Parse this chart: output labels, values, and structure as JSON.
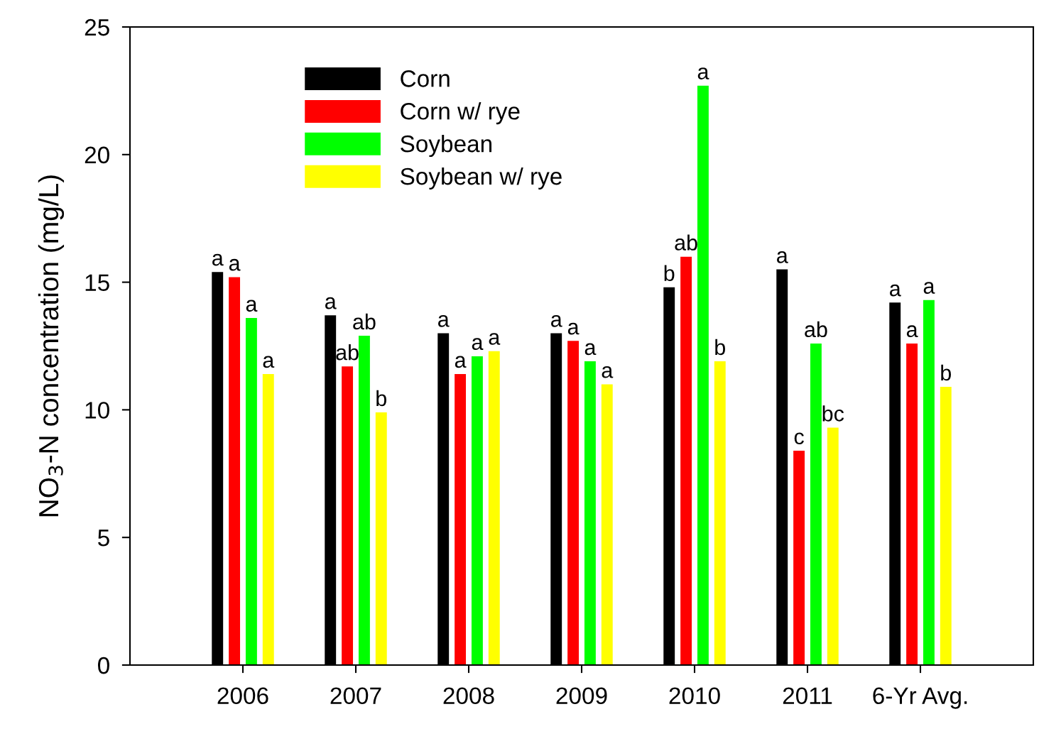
{
  "chart_data": {
    "type": "bar",
    "ylabel": "NO$_{3}$-N concentration (mg/L)",
    "categories": [
      "2006",
      "2007",
      "2008",
      "2009",
      "2010",
      "2011",
      "6-Yr Avg."
    ],
    "series": [
      {
        "name": "Corn",
        "color": "#000000",
        "values": [
          15.4,
          13.7,
          13.0,
          13.0,
          14.8,
          15.5,
          14.2
        ],
        "value_labels": [
          "a",
          "a",
          "a",
          "a",
          "b",
          "a",
          "a"
        ]
      },
      {
        "name": "Corn w/ rye",
        "color": "#ff0000",
        "values": [
          15.2,
          11.7,
          11.4,
          12.7,
          16.0,
          8.4,
          12.6
        ],
        "value_labels": [
          "a",
          "ab",
          "a",
          "a",
          "ab",
          "c",
          "a"
        ]
      },
      {
        "name": "Soybean",
        "color": "#00ff00",
        "values": [
          13.6,
          12.9,
          12.1,
          11.9,
          22.7,
          12.6,
          14.3
        ],
        "value_labels": [
          "a",
          "ab",
          "a",
          "a",
          "a",
          "ab",
          "a"
        ]
      },
      {
        "name": "Soybean w/ rye",
        "color": "#ffff00",
        "values": [
          11.4,
          9.9,
          12.3,
          11.0,
          11.9,
          9.3,
          10.9
        ],
        "value_labels": [
          "a",
          "b",
          "a",
          "a",
          "b",
          "bc",
          "b"
        ]
      }
    ],
    "ylim": [
      0,
      25
    ],
    "yticks": [
      0,
      5,
      10,
      15,
      20,
      25
    ],
    "grid": false,
    "legend": "top left"
  }
}
